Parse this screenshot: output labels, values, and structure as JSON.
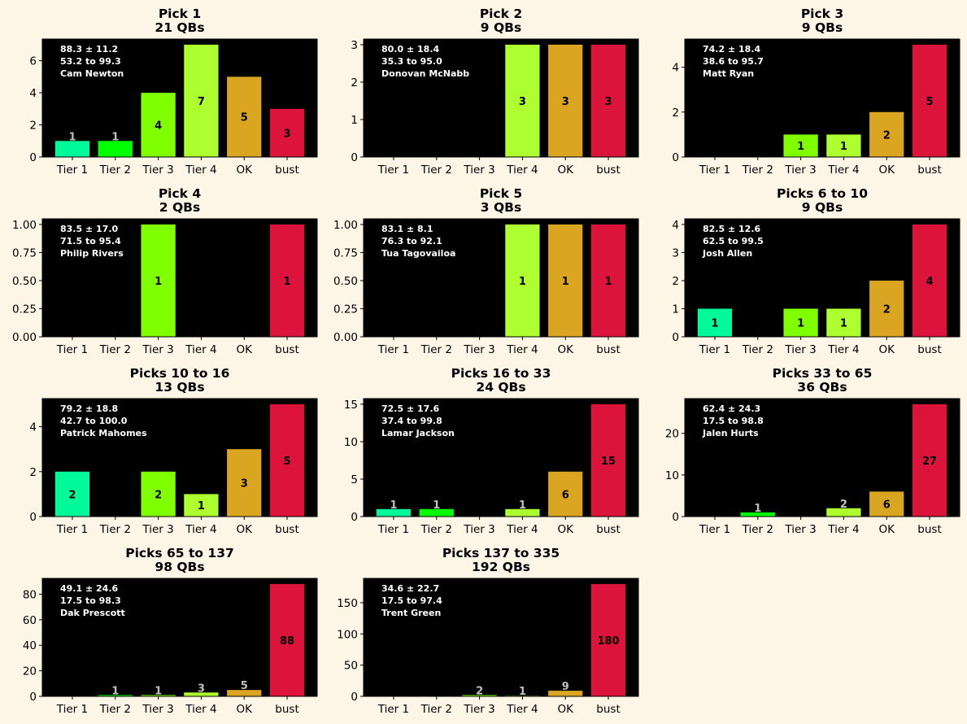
{
  "colors": {
    "background": "#fdf5e6",
    "plot_bg": "#000000",
    "tier1": "#00fa9a",
    "tier2": "#00ff00",
    "tier3": "#7fff00",
    "tier4": "#adff2f",
    "ok": "#daa520",
    "bust": "#dc143c",
    "label_inside": "#000000",
    "label_above": "#c0c0c0",
    "annotation": "#ffffff"
  },
  "chart_data": [
    {
      "type": "bar",
      "title_line1": "Pick 1",
      "title_line2": "21 QBs",
      "categories": [
        "Tier 1",
        "Tier 2",
        "Tier 3",
        "Tier 4",
        "OK",
        "bust"
      ],
      "values": [
        1,
        1,
        4,
        7,
        5,
        3
      ],
      "ylim": [
        0,
        7.35
      ],
      "yticks": [
        0,
        2,
        4,
        6
      ],
      "ytick_labels": [
        "0",
        "2",
        "4",
        "6"
      ],
      "annotation": [
        "88.3 ± 11.2",
        "53.2 to 99.3",
        "Cam Newton"
      ],
      "bar_labels": [
        "1",
        "1",
        "4",
        "7",
        "5",
        "3"
      ]
    },
    {
      "type": "bar",
      "title_line1": "Pick 2",
      "title_line2": "9 QBs",
      "categories": [
        "Tier 1",
        "Tier 2",
        "Tier 3",
        "Tier 4",
        "OK",
        "bust"
      ],
      "values": [
        0,
        0,
        0,
        3,
        3,
        3
      ],
      "ylim": [
        0,
        3.15
      ],
      "yticks": [
        0,
        1,
        2,
        3
      ],
      "ytick_labels": [
        "0",
        "1",
        "2",
        "3"
      ],
      "annotation": [
        "80.0 ± 18.4",
        "35.3 to 95.0",
        "Donovan McNabb"
      ],
      "bar_labels": [
        "",
        "",
        "",
        "3",
        "3",
        "3"
      ]
    },
    {
      "type": "bar",
      "title_line1": "Pick 3",
      "title_line2": "9 QBs",
      "categories": [
        "Tier 1",
        "Tier 2",
        "Tier 3",
        "Tier 4",
        "OK",
        "bust"
      ],
      "values": [
        0,
        0,
        1,
        1,
        2,
        5
      ],
      "ylim": [
        0,
        5.25
      ],
      "yticks": [
        0,
        2,
        4
      ],
      "ytick_labels": [
        "0",
        "2",
        "4"
      ],
      "annotation": [
        "74.2 ± 18.4",
        "38.6 to 95.7",
        "Matt Ryan"
      ],
      "bar_labels": [
        "",
        "",
        "1",
        "1",
        "2",
        "5"
      ]
    },
    {
      "type": "bar",
      "title_line1": "Pick 4",
      "title_line2": "2 QBs",
      "categories": [
        "Tier 1",
        "Tier 2",
        "Tier 3",
        "Tier 4",
        "OK",
        "bust"
      ],
      "values": [
        0,
        0,
        1,
        0,
        0,
        1
      ],
      "ylim": [
        0,
        1.05
      ],
      "yticks": [
        0,
        0.25,
        0.5,
        0.75,
        1
      ],
      "ytick_labels": [
        "0.00",
        "0.25",
        "0.50",
        "0.75",
        "1.00"
      ],
      "annotation": [
        "83.5 ± 17.0",
        "71.5 to 95.4",
        "Philip Rivers"
      ],
      "bar_labels": [
        "",
        "",
        "1",
        "",
        "",
        "1"
      ]
    },
    {
      "type": "bar",
      "title_line1": "Pick 5",
      "title_line2": "3 QBs",
      "categories": [
        "Tier 1",
        "Tier 2",
        "Tier 3",
        "Tier 4",
        "OK",
        "bust"
      ],
      "values": [
        0,
        0,
        0,
        1,
        1,
        1
      ],
      "ylim": [
        0,
        1.05
      ],
      "yticks": [
        0,
        0.25,
        0.5,
        0.75,
        1
      ],
      "ytick_labels": [
        "0.00",
        "0.25",
        "0.50",
        "0.75",
        "1.00"
      ],
      "annotation": [
        "83.1 ± 8.1",
        "76.3 to 92.1",
        "Tua Tagovailoa"
      ],
      "bar_labels": [
        "",
        "",
        "",
        "1",
        "1",
        "1"
      ]
    },
    {
      "type": "bar",
      "title_line1": "Picks 6 to 10",
      "title_line2": "9 QBs",
      "categories": [
        "Tier 1",
        "Tier 2",
        "Tier 3",
        "Tier 4",
        "OK",
        "bust"
      ],
      "values": [
        1,
        0,
        1,
        1,
        2,
        4
      ],
      "ylim": [
        0,
        4.2
      ],
      "yticks": [
        0,
        1,
        2,
        3,
        4
      ],
      "ytick_labels": [
        "0",
        "1",
        "2",
        "3",
        "4"
      ],
      "annotation": [
        "82.5 ± 12.6",
        "62.5 to 99.5",
        "Josh Allen"
      ],
      "bar_labels": [
        "1",
        "",
        "1",
        "1",
        "2",
        "4"
      ]
    },
    {
      "type": "bar",
      "title_line1": "Picks 10 to 16",
      "title_line2": "13 QBs",
      "categories": [
        "Tier 1",
        "Tier 2",
        "Tier 3",
        "Tier 4",
        "OK",
        "bust"
      ],
      "values": [
        2,
        0,
        2,
        1,
        3,
        5
      ],
      "ylim": [
        0,
        5.25
      ],
      "yticks": [
        0,
        2,
        4
      ],
      "ytick_labels": [
        "0",
        "2",
        "4"
      ],
      "annotation": [
        "79.2 ± 18.8",
        "42.7 to 100.0",
        "Patrick Mahomes"
      ],
      "bar_labels": [
        "2",
        "",
        "2",
        "1",
        "3",
        "5"
      ]
    },
    {
      "type": "bar",
      "title_line1": "Picks 16 to 33",
      "title_line2": "24 QBs",
      "categories": [
        "Tier 1",
        "Tier 2",
        "Tier 3",
        "Tier 4",
        "OK",
        "bust"
      ],
      "values": [
        1,
        1,
        0,
        1,
        6,
        15
      ],
      "ylim": [
        0,
        15.75
      ],
      "yticks": [
        0,
        5,
        10,
        15
      ],
      "ytick_labels": [
        "0",
        "5",
        "10",
        "15"
      ],
      "annotation": [
        "72.5 ± 17.6",
        "37.4 to 99.8",
        "Lamar Jackson"
      ],
      "bar_labels": [
        "1",
        "1",
        "",
        "1",
        "6",
        "15"
      ]
    },
    {
      "type": "bar",
      "title_line1": "Picks 33 to 65",
      "title_line2": "36 QBs",
      "categories": [
        "Tier 1",
        "Tier 2",
        "Tier 3",
        "Tier 4",
        "OK",
        "bust"
      ],
      "values": [
        0,
        1,
        0,
        2,
        6,
        27
      ],
      "ylim": [
        0,
        28.35
      ],
      "yticks": [
        0,
        10,
        20
      ],
      "ytick_labels": [
        "0",
        "10",
        "20"
      ],
      "annotation": [
        "62.4 ± 24.3",
        "17.5 to 98.8",
        "Jalen Hurts"
      ],
      "bar_labels": [
        "",
        "1",
        "",
        "2",
        "6",
        "27"
      ]
    },
    {
      "type": "bar",
      "title_line1": "Picks 65 to 137",
      "title_line2": "98 QBs",
      "categories": [
        "Tier 1",
        "Tier 2",
        "Tier 3",
        "Tier 4",
        "OK",
        "bust"
      ],
      "values": [
        0,
        1,
        1,
        3,
        5,
        88
      ],
      "ylim": [
        0,
        92.4
      ],
      "yticks": [
        0,
        20,
        40,
        60,
        80
      ],
      "ytick_labels": [
        "0",
        "20",
        "40",
        "60",
        "80"
      ],
      "annotation": [
        "49.1 ± 24.6",
        "17.5 to 98.3",
        "Dak Prescott"
      ],
      "bar_labels": [
        "",
        "1",
        "1",
        "3",
        "5",
        "88"
      ]
    },
    {
      "type": "bar",
      "title_line1": "Picks 137 to 335",
      "title_line2": "192 QBs",
      "categories": [
        "Tier 1",
        "Tier 2",
        "Tier 3",
        "Tier 4",
        "OK",
        "bust"
      ],
      "values": [
        0,
        0,
        2,
        1,
        9,
        180
      ],
      "ylim": [
        0,
        189
      ],
      "yticks": [
        0,
        50,
        100,
        150
      ],
      "ytick_labels": [
        "0",
        "50",
        "100",
        "150"
      ],
      "annotation": [
        "34.6 ± 22.7",
        "17.5 to 97.4",
        "Trent Green"
      ],
      "bar_labels": [
        "",
        "",
        "2",
        "1",
        "9",
        "180"
      ]
    }
  ]
}
